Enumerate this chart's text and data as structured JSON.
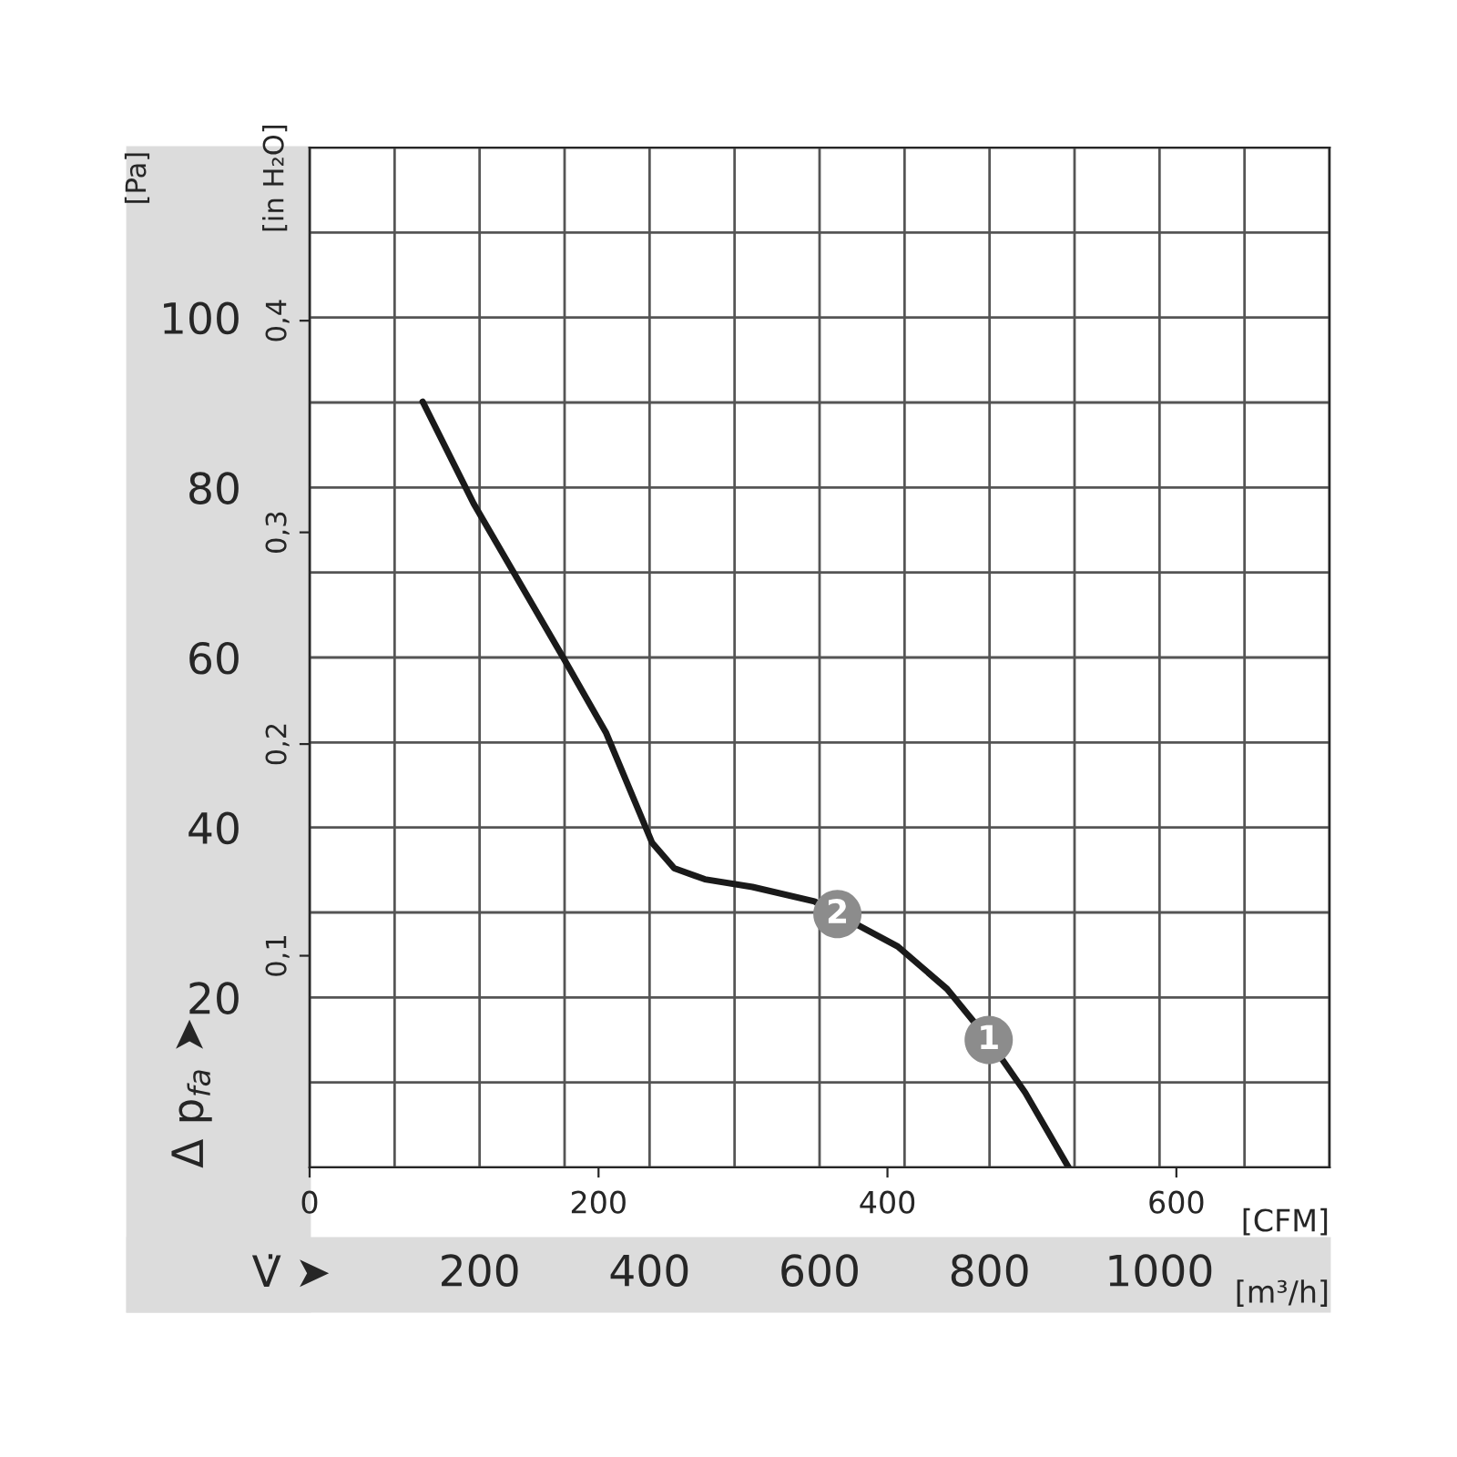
{
  "chart_data": {
    "type": "line",
    "xlabel": "[m³/h]",
    "ylabel": "[Pa]",
    "x2label": "[CFM]",
    "y2label": "[in H₂O]",
    "x": [
      133,
      193,
      300,
      349,
      403,
      429,
      465,
      521,
      594,
      621,
      692,
      750,
      799,
      842,
      893
    ],
    "series": [
      {
        "color": "#1a1a1a",
        "values": [
          90.1,
          78.1,
          59.7,
          51.1,
          38.2,
          35.2,
          33.9,
          33.0,
          31.3,
          29.8,
          26.0,
          21.0,
          15.0,
          8.8,
          0
        ]
      }
    ],
    "xlim": [
      0,
      1200
    ],
    "xticks": [
      200,
      400,
      600,
      800,
      1000
    ],
    "ylim": [
      0,
      120
    ],
    "yticks": [
      20,
      40,
      60,
      80,
      100
    ],
    "x2lim": [
      0,
      706
    ],
    "x2ticks": [
      0,
      200,
      400,
      600
    ],
    "y2lim": [
      0,
      0.4818
    ],
    "y2ticks": [
      {
        "value": 0.1,
        "label": "0,1"
      },
      {
        "value": 0.2,
        "label": "0,2"
      },
      {
        "value": 0.3,
        "label": "0,3"
      },
      {
        "value": 0.4,
        "label": "0,4"
      }
    ],
    "grid": true,
    "legend": false,
    "marker": "none",
    "line_style": "solid",
    "annotations": [
      "Δ p$_{fa}$ ➤",
      "V̇ ➤",
      {
        "text": "2",
        "x": 621,
        "y": 29.8
      },
      {
        "text": "1",
        "x": 799,
        "y": 15.0
      }
    ]
  }
}
